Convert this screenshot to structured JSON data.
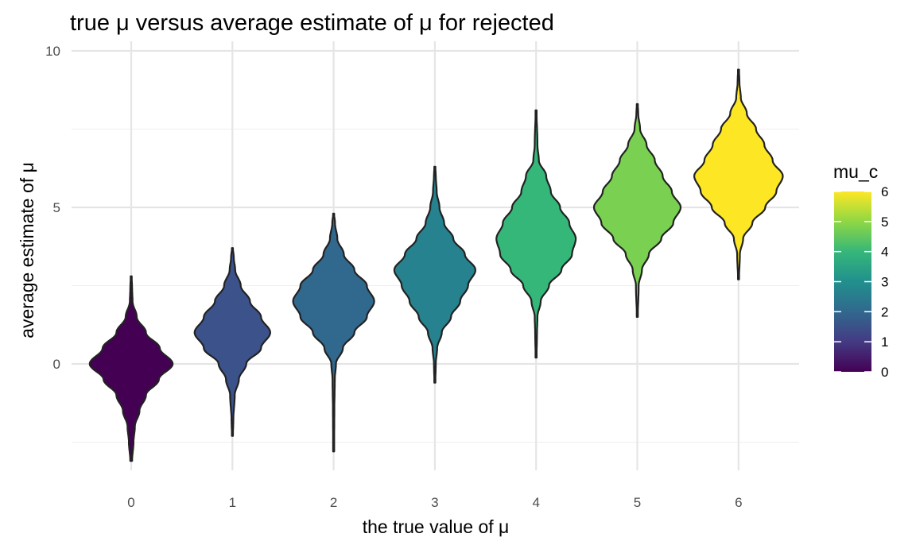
{
  "chart_data": {
    "type": "violin",
    "title": "true μ versus average estimate of μ for rejected",
    "xlabel": "the true value of μ",
    "ylabel": "average estimate of μ",
    "categories": [
      "0",
      "1",
      "2",
      "3",
      "4",
      "5",
      "6"
    ],
    "x": [
      0,
      1,
      2,
      3,
      4,
      5,
      6
    ],
    "ylim": [
      -3.2,
      10
    ],
    "yticks": [
      0,
      5,
      10
    ],
    "grid": true,
    "violins": [
      {
        "x": 0,
        "color": "#440154",
        "center": 0.0,
        "min": -3.1,
        "max": 2.8,
        "profile": [
          [
            -3.1,
            0.02
          ],
          [
            -2.5,
            0.05
          ],
          [
            -2.0,
            0.08
          ],
          [
            -1.5,
            0.18
          ],
          [
            -1.0,
            0.32
          ],
          [
            -0.5,
            0.6
          ],
          [
            0.0,
            0.9
          ],
          [
            0.5,
            0.62
          ],
          [
            1.0,
            0.32
          ],
          [
            1.5,
            0.12
          ],
          [
            2.0,
            0.03
          ],
          [
            2.4,
            0.02
          ],
          [
            2.8,
            0.01
          ]
        ]
      },
      {
        "x": 1,
        "color": "#3b528b",
        "center": 1.0,
        "min": -2.3,
        "max": 3.7,
        "profile": [
          [
            -2.3,
            0.01
          ],
          [
            -1.8,
            0.02
          ],
          [
            -1.0,
            0.05
          ],
          [
            -0.5,
            0.14
          ],
          [
            0.0,
            0.3
          ],
          [
            0.5,
            0.62
          ],
          [
            1.0,
            0.82
          ],
          [
            1.5,
            0.62
          ],
          [
            2.0,
            0.38
          ],
          [
            2.5,
            0.18
          ],
          [
            3.0,
            0.06
          ],
          [
            3.4,
            0.03
          ],
          [
            3.7,
            0.01
          ]
        ]
      },
      {
        "x": 2,
        "color": "#31688e",
        "center": 2.0,
        "min": -2.8,
        "max": 4.8,
        "profile": [
          [
            -2.8,
            0.01
          ],
          [
            -1.5,
            0.015
          ],
          [
            -0.5,
            0.025
          ],
          [
            0.0,
            0.05
          ],
          [
            0.5,
            0.2
          ],
          [
            1.0,
            0.45
          ],
          [
            1.5,
            0.72
          ],
          [
            2.0,
            0.88
          ],
          [
            2.5,
            0.72
          ],
          [
            3.0,
            0.45
          ],
          [
            3.5,
            0.22
          ],
          [
            4.0,
            0.08
          ],
          [
            4.5,
            0.03
          ],
          [
            4.8,
            0.01
          ]
        ]
      },
      {
        "x": 3,
        "color": "#26828e",
        "center": 3.0,
        "min": -0.6,
        "max": 6.3,
        "profile": [
          [
            -0.6,
            0.01
          ],
          [
            0.0,
            0.02
          ],
          [
            0.5,
            0.05
          ],
          [
            1.0,
            0.15
          ],
          [
            1.5,
            0.35
          ],
          [
            2.0,
            0.55
          ],
          [
            2.5,
            0.72
          ],
          [
            3.0,
            0.88
          ],
          [
            3.5,
            0.65
          ],
          [
            4.0,
            0.4
          ],
          [
            4.5,
            0.2
          ],
          [
            5.0,
            0.1
          ],
          [
            5.5,
            0.04
          ],
          [
            6.0,
            0.02
          ],
          [
            6.3,
            0.01
          ]
        ]
      },
      {
        "x": 4,
        "color": "#35b779",
        "center": 4.0,
        "min": 0.2,
        "max": 8.1,
        "profile": [
          [
            0.2,
            0.01
          ],
          [
            1.0,
            0.02
          ],
          [
            1.5,
            0.03
          ],
          [
            2.0,
            0.1
          ],
          [
            2.5,
            0.28
          ],
          [
            3.0,
            0.55
          ],
          [
            3.5,
            0.78
          ],
          [
            4.0,
            0.86
          ],
          [
            4.5,
            0.72
          ],
          [
            5.0,
            0.52
          ],
          [
            5.5,
            0.32
          ],
          [
            6.0,
            0.22
          ],
          [
            6.5,
            0.06
          ],
          [
            7.0,
            0.03
          ],
          [
            8.1,
            0.01
          ]
        ]
      },
      {
        "x": 5,
        "color": "#7ad151",
        "center": 5.0,
        "min": 1.5,
        "max": 8.3,
        "profile": [
          [
            1.5,
            0.01
          ],
          [
            2.5,
            0.03
          ],
          [
            3.0,
            0.1
          ],
          [
            3.5,
            0.25
          ],
          [
            4.0,
            0.52
          ],
          [
            4.5,
            0.78
          ],
          [
            5.0,
            0.94
          ],
          [
            5.5,
            0.75
          ],
          [
            6.0,
            0.55
          ],
          [
            6.5,
            0.38
          ],
          [
            7.0,
            0.2
          ],
          [
            7.5,
            0.06
          ],
          [
            8.0,
            0.02
          ],
          [
            8.3,
            0.01
          ]
        ]
      },
      {
        "x": 6,
        "color": "#fde725",
        "center": 6.0,
        "min": 2.7,
        "max": 9.4,
        "profile": [
          [
            2.7,
            0.01
          ],
          [
            3.5,
            0.03
          ],
          [
            4.0,
            0.1
          ],
          [
            4.5,
            0.3
          ],
          [
            5.0,
            0.58
          ],
          [
            5.5,
            0.82
          ],
          [
            6.0,
            0.96
          ],
          [
            6.5,
            0.74
          ],
          [
            7.0,
            0.56
          ],
          [
            7.5,
            0.38
          ],
          [
            8.0,
            0.18
          ],
          [
            8.5,
            0.05
          ],
          [
            9.0,
            0.02
          ],
          [
            9.4,
            0.01
          ]
        ]
      }
    ],
    "legend": {
      "title": "mu_c",
      "placement": "right",
      "ticks": [
        "0",
        "1",
        "2",
        "3",
        "4",
        "5",
        "6"
      ],
      "colors": [
        "#440154",
        "#443a83",
        "#31688e",
        "#21908d",
        "#35b779",
        "#8fd744",
        "#fde725"
      ]
    }
  }
}
